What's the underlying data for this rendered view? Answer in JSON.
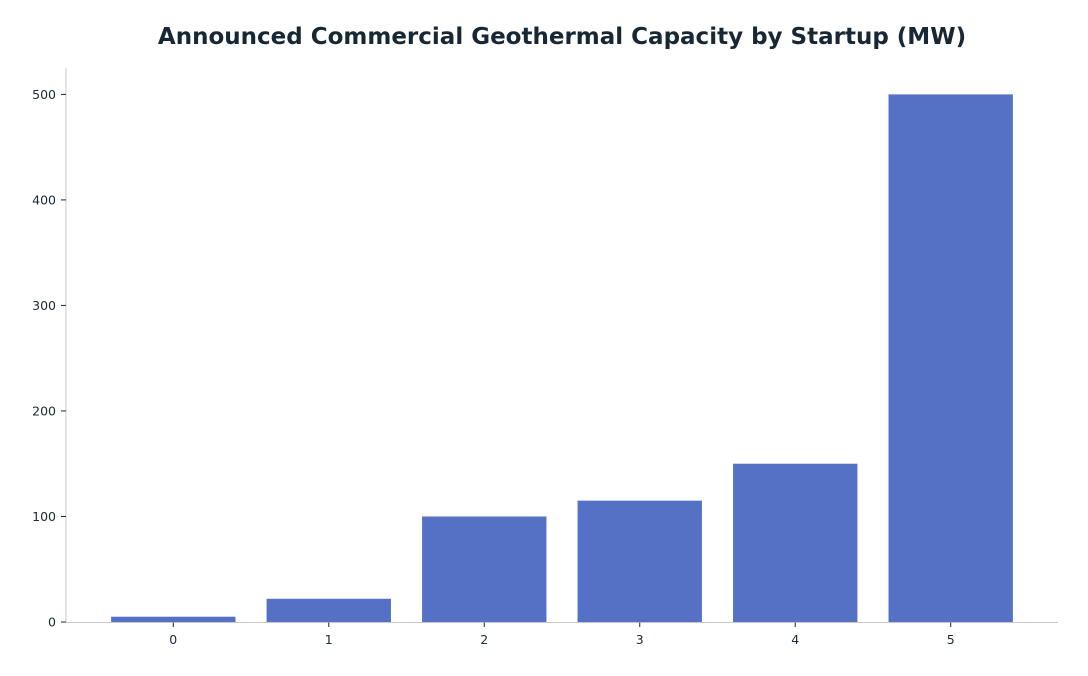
{
  "chart_data": {
    "type": "bar",
    "title": "Announced Commercial Geothermal Capacity by Startup (MW)",
    "xlabel": "",
    "ylabel": "",
    "categories": [
      "0",
      "1",
      "2",
      "3",
      "4",
      "5"
    ],
    "values": [
      5,
      22,
      100,
      115,
      150,
      500
    ],
    "ylim": [
      0,
      525
    ],
    "yticks": [
      0,
      100,
      200,
      300,
      400,
      500
    ],
    "grid": false,
    "bar_color": "#5571c6",
    "axis_color": "#c8c8c8",
    "text_color": "#172733"
  }
}
